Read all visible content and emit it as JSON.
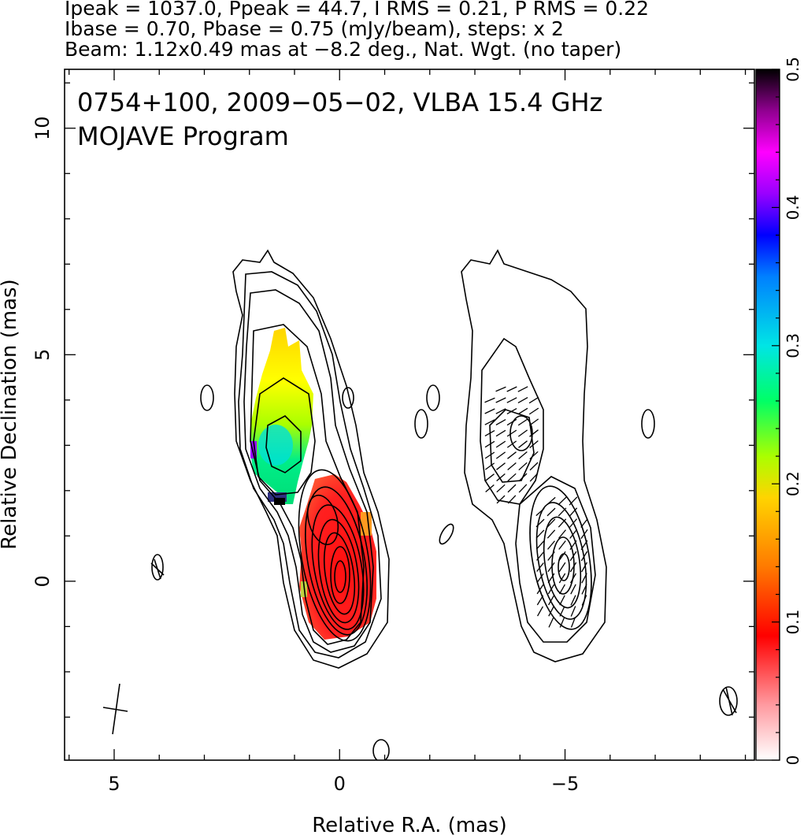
{
  "header": {
    "line1": "Ipeak = 1037.0, Ppeak = 44.7, I RMS = 0.21, P RMS = 0.22",
    "line2": "Ibase = 0.70, Pbase = 0.75 (mJy/beam), steps: x 2",
    "line3": "Beam: 1.12x0.49 mas at −8.2 deg., Nat. Wgt. (no taper)"
  },
  "plot_title": {
    "line1": "0754+100, 2009−05−02, VLBA 15.4 GHz",
    "line2": "MOJAVE Program"
  },
  "chart_data": {
    "type": "contour",
    "xlabel": "Relative R.A. (mas)",
    "ylabel": "Relative Declination (mas)",
    "xlim": [
      6.1,
      -9.2
    ],
    "ylim": [
      -3.95,
      11.3
    ],
    "x_ticks": [
      5,
      0,
      -5
    ],
    "x_tick_labels": [
      "5",
      "0",
      "−5"
    ],
    "y_ticks": [
      0,
      5,
      10
    ],
    "y_tick_labels": [
      "0",
      "5",
      "10"
    ],
    "colorbar": {
      "range": [
        0,
        0.5
      ],
      "ticks": [
        0,
        0.1,
        0.2,
        0.3,
        0.4,
        0.5
      ],
      "tick_labels": [
        "0",
        "0.1",
        "0.2",
        "0.3",
        "0.4",
        "0.5"
      ],
      "colors": [
        "#ffffff",
        "#ff9aa0",
        "#ff0000",
        "#ff7a00",
        "#ffd400",
        "#aaff00",
        "#00ff66",
        "#00e5e5",
        "#0080ff",
        "#0000ff",
        "#9900ff",
        "#ff00ff",
        "#900090",
        "#000000"
      ]
    },
    "beam": {
      "major_mas": 1.12,
      "minor_mas": 0.49,
      "pa_deg": -8.2
    },
    "panels": [
      {
        "name": "Total intensity + fractional polarization",
        "x_offset": 0
      },
      {
        "name": "Polarized intensity + EVPA",
        "x_offset": -4.9
      }
    ],
    "stats": {
      "Ipeak": 1037.0,
      "Ppeak": 44.7,
      "I_RMS": 0.21,
      "P_RMS": 0.22,
      "Ibase": 0.7,
      "Pbase": 0.75,
      "units": "mJy/beam",
      "steps": 2
    }
  }
}
